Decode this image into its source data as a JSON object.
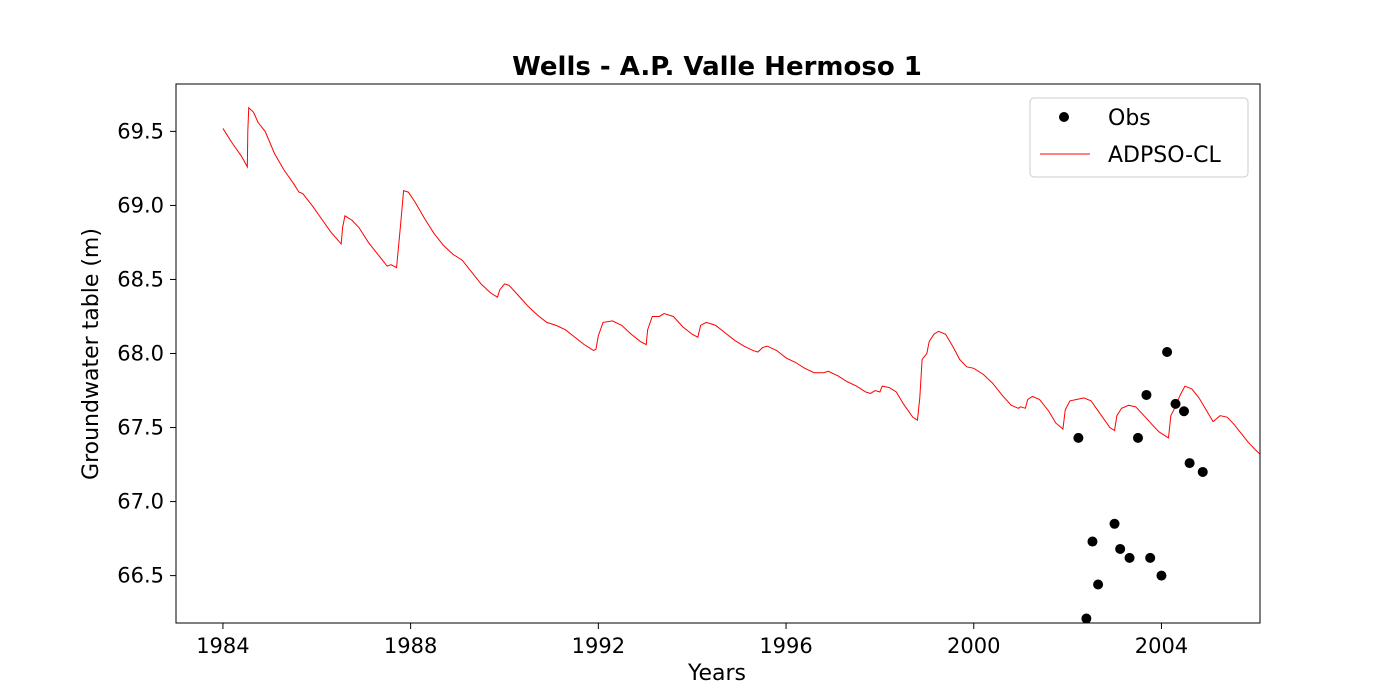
{
  "chart_data": {
    "type": "line",
    "title": "Wells - A.P. Valle Hermoso 1",
    "xlabel": "Years",
    "ylabel": "Groundwater table (m)",
    "xlim": [
      1983.0,
      2006.1
    ],
    "ylim": [
      66.18,
      69.82
    ],
    "xticks": [
      1984,
      1988,
      1992,
      1996,
      2000,
      2004
    ],
    "yticks": [
      66.5,
      67.0,
      67.5,
      68.0,
      68.5,
      69.0,
      69.5
    ],
    "ytick_labels": [
      "66.5",
      "67.0",
      "67.5",
      "68.0",
      "68.5",
      "69.0",
      "69.5"
    ],
    "grid": false,
    "legend_position": "top-right",
    "series": [
      {
        "name": "Obs",
        "kind": "scatter",
        "color": "#000000",
        "points": [
          [
            2002.23,
            67.43
          ],
          [
            2002.4,
            66.21
          ],
          [
            2002.53,
            66.73
          ],
          [
            2002.65,
            66.44
          ],
          [
            2003.0,
            66.85
          ],
          [
            2003.12,
            66.68
          ],
          [
            2003.32,
            66.62
          ],
          [
            2003.5,
            67.43
          ],
          [
            2003.68,
            67.72
          ],
          [
            2003.76,
            66.62
          ],
          [
            2004.0,
            66.5
          ],
          [
            2004.12,
            68.01
          ],
          [
            2004.3,
            67.66
          ],
          [
            2004.48,
            67.61
          ],
          [
            2004.6,
            67.26
          ],
          [
            2004.88,
            67.2
          ]
        ]
      },
      {
        "name": "ADPSO-CL",
        "kind": "line",
        "color": "#ff0000",
        "points": [
          [
            1984.0,
            69.52
          ],
          [
            1984.2,
            69.42
          ],
          [
            1984.4,
            69.33
          ],
          [
            1984.52,
            69.26
          ],
          [
            1984.53,
            69.5
          ],
          [
            1984.55,
            69.66
          ],
          [
            1984.65,
            69.63
          ],
          [
            1984.75,
            69.56
          ],
          [
            1984.9,
            69.5
          ],
          [
            1985.1,
            69.35
          ],
          [
            1985.3,
            69.24
          ],
          [
            1985.5,
            69.15
          ],
          [
            1985.62,
            69.09
          ],
          [
            1985.7,
            69.08
          ],
          [
            1985.9,
            69.0
          ],
          [
            1986.1,
            68.91
          ],
          [
            1986.3,
            68.82
          ],
          [
            1986.52,
            68.74
          ],
          [
            1986.55,
            68.85
          ],
          [
            1986.6,
            68.93
          ],
          [
            1986.75,
            68.9
          ],
          [
            1986.9,
            68.85
          ],
          [
            1987.1,
            68.75
          ],
          [
            1987.3,
            68.67
          ],
          [
            1987.5,
            68.59
          ],
          [
            1987.58,
            68.6
          ],
          [
            1987.7,
            68.58
          ],
          [
            1987.78,
            68.85
          ],
          [
            1987.85,
            69.1
          ],
          [
            1987.95,
            69.09
          ],
          [
            1988.1,
            69.02
          ],
          [
            1988.3,
            68.91
          ],
          [
            1988.5,
            68.81
          ],
          [
            1988.7,
            68.73
          ],
          [
            1988.9,
            68.67
          ],
          [
            1989.1,
            68.63
          ],
          [
            1989.3,
            68.55
          ],
          [
            1989.5,
            68.47
          ],
          [
            1989.7,
            68.41
          ],
          [
            1989.85,
            68.38
          ],
          [
            1989.9,
            68.43
          ],
          [
            1990.0,
            68.47
          ],
          [
            1990.1,
            68.46
          ],
          [
            1990.3,
            68.39
          ],
          [
            1990.5,
            68.32
          ],
          [
            1990.7,
            68.26
          ],
          [
            1990.9,
            68.21
          ],
          [
            1991.1,
            68.19
          ],
          [
            1991.3,
            68.16
          ],
          [
            1991.5,
            68.11
          ],
          [
            1991.7,
            68.06
          ],
          [
            1991.9,
            68.02
          ],
          [
            1991.95,
            68.03
          ],
          [
            1992.0,
            68.12
          ],
          [
            1992.1,
            68.21
          ],
          [
            1992.3,
            68.22
          ],
          [
            1992.5,
            68.19
          ],
          [
            1992.7,
            68.13
          ],
          [
            1992.9,
            68.08
          ],
          [
            1993.02,
            68.06
          ],
          [
            1993.05,
            68.16
          ],
          [
            1993.15,
            68.25
          ],
          [
            1993.3,
            68.25
          ],
          [
            1993.4,
            68.27
          ],
          [
            1993.6,
            68.25
          ],
          [
            1993.8,
            68.18
          ],
          [
            1994.0,
            68.13
          ],
          [
            1994.12,
            68.11
          ],
          [
            1994.18,
            68.19
          ],
          [
            1994.3,
            68.21
          ],
          [
            1994.5,
            68.19
          ],
          [
            1994.7,
            68.14
          ],
          [
            1994.9,
            68.09
          ],
          [
            1995.1,
            68.05
          ],
          [
            1995.3,
            68.02
          ],
          [
            1995.4,
            68.01
          ],
          [
            1995.5,
            68.04
          ],
          [
            1995.6,
            68.05
          ],
          [
            1995.8,
            68.02
          ],
          [
            1996.0,
            67.97
          ],
          [
            1996.2,
            67.94
          ],
          [
            1996.4,
            67.9
          ],
          [
            1996.6,
            67.87
          ],
          [
            1996.8,
            67.87
          ],
          [
            1996.9,
            67.88
          ],
          [
            1997.1,
            67.85
          ],
          [
            1997.3,
            67.81
          ],
          [
            1997.5,
            67.78
          ],
          [
            1997.7,
            67.74
          ],
          [
            1997.8,
            67.73
          ],
          [
            1997.9,
            67.75
          ],
          [
            1998.0,
            67.74
          ],
          [
            1998.05,
            67.78
          ],
          [
            1998.2,
            67.77
          ],
          [
            1998.35,
            67.74
          ],
          [
            1998.5,
            67.66
          ],
          [
            1998.7,
            67.57
          ],
          [
            1998.8,
            67.55
          ],
          [
            1998.85,
            67.7
          ],
          [
            1998.9,
            67.96
          ],
          [
            1999.0,
            68.0
          ],
          [
            1999.05,
            68.08
          ],
          [
            1999.15,
            68.13
          ],
          [
            1999.25,
            68.15
          ],
          [
            1999.4,
            68.13
          ],
          [
            1999.55,
            68.05
          ],
          [
            1999.7,
            67.96
          ],
          [
            1999.85,
            67.91
          ],
          [
            2000.0,
            67.9
          ],
          [
            2000.2,
            67.86
          ],
          [
            2000.4,
            67.8
          ],
          [
            2000.6,
            67.72
          ],
          [
            2000.8,
            67.65
          ],
          [
            2000.95,
            67.63
          ],
          [
            2001.0,
            67.64
          ],
          [
            2001.1,
            67.63
          ],
          [
            2001.15,
            67.69
          ],
          [
            2001.25,
            67.71
          ],
          [
            2001.4,
            67.69
          ],
          [
            2001.6,
            67.61
          ],
          [
            2001.75,
            67.53
          ],
          [
            2001.9,
            67.49
          ],
          [
            2001.95,
            67.62
          ],
          [
            2002.05,
            67.68
          ],
          [
            2002.2,
            67.69
          ],
          [
            2002.35,
            67.7
          ],
          [
            2002.5,
            67.68
          ],
          [
            2002.7,
            67.59
          ],
          [
            2002.9,
            67.5
          ],
          [
            2003.0,
            67.48
          ],
          [
            2003.05,
            67.58
          ],
          [
            2003.15,
            67.63
          ],
          [
            2003.3,
            67.65
          ],
          [
            2003.45,
            67.64
          ],
          [
            2003.6,
            67.59
          ],
          [
            2003.8,
            67.52
          ],
          [
            2003.95,
            67.47
          ],
          [
            2004.05,
            67.45
          ],
          [
            2004.15,
            67.43
          ],
          [
            2004.2,
            67.58
          ],
          [
            2004.28,
            67.63
          ],
          [
            2004.4,
            67.72
          ],
          [
            2004.5,
            67.78
          ],
          [
            2004.65,
            67.76
          ],
          [
            2004.8,
            67.7
          ],
          [
            2004.95,
            67.62
          ],
          [
            2005.1,
            67.54
          ],
          [
            2005.25,
            67.58
          ],
          [
            2005.4,
            67.57
          ],
          [
            2005.55,
            67.52
          ],
          [
            2005.7,
            67.46
          ],
          [
            2005.85,
            67.4
          ],
          [
            2006.0,
            67.35
          ],
          [
            2006.1,
            67.32
          ]
        ]
      }
    ]
  }
}
